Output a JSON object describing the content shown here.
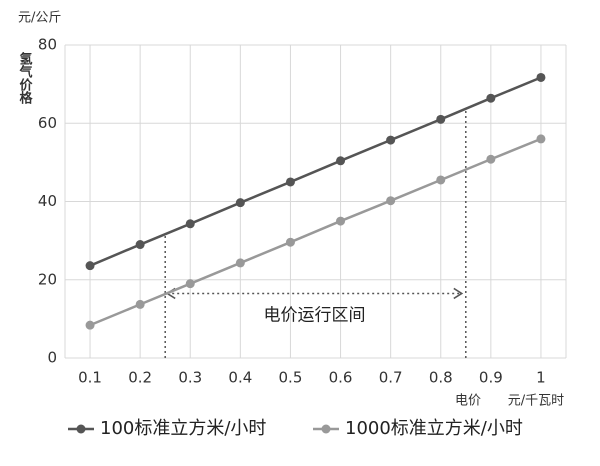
{
  "chart_data": {
    "type": "line",
    "y_label_top": "元/公斤",
    "y_label": "氢气价格",
    "x_label_left": "电价",
    "x_label_right": "元/千瓦时",
    "x": [
      0.1,
      0.2,
      0.3,
      0.4,
      0.5,
      0.6,
      0.7,
      0.8,
      0.9,
      1
    ],
    "series": [
      {
        "name": "100标准立方米/小时",
        "color": "#555555",
        "values": [
          23.6,
          29,
          34.3,
          39.7,
          45,
          50.4,
          55.7,
          61,
          66.4,
          71.7
        ]
      },
      {
        "name": "1000标准立方米/小时",
        "color": "#999999",
        "values": [
          8.4,
          13.7,
          19,
          24.3,
          29.6,
          35,
          40.2,
          45.5,
          50.8,
          56
        ]
      }
    ],
    "xlim": [
      0.05,
      1.05
    ],
    "xticks": [
      0.1,
      0.2,
      0.3,
      0.4,
      0.5,
      0.6,
      0.7,
      0.8,
      0.9,
      1
    ],
    "ylim": [
      0,
      80
    ],
    "yticks": [
      0,
      20,
      40,
      60,
      80
    ],
    "grid": true,
    "interval": {
      "label": "电价运行区间",
      "x": [
        0.25,
        0.85
      ],
      "y": 16.5
    }
  }
}
